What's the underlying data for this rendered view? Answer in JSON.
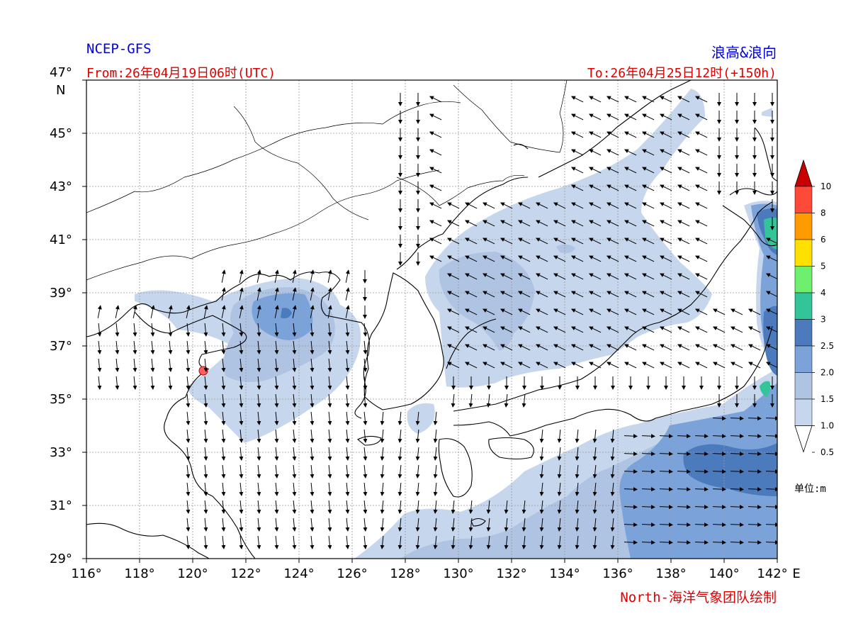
{
  "header": {
    "model": "NCEP-GFS",
    "product": "浪高&浪向",
    "from_time": "From:26年04月19日06时(UTC)",
    "to_time": "To:26年04月25日12时(+150h)"
  },
  "footer": {
    "credit": "North-海洋气象团队绘制"
  },
  "colorbar": {
    "unit_label": "单位:m",
    "levels": [
      "0.5",
      "1.0",
      "1.5",
      "2.0",
      "2.5",
      "3",
      "4",
      "5",
      "6",
      "8",
      "10"
    ],
    "colors": [
      "#ffffff",
      "#c6d6ec",
      "#afc3e2",
      "#7ba3d9",
      "#4c7bbd",
      "#33c49a",
      "#6ef06e",
      "#ffe000",
      "#ff9a00",
      "#ff4a3a",
      "#c80000"
    ]
  },
  "axes": {
    "lat_labels": [
      "47°",
      "45°",
      "43°",
      "41°",
      "39°",
      "37°",
      "35°",
      "33°",
      "31°",
      "29°"
    ],
    "lat_unit": "N",
    "lon_labels": [
      "116°",
      "118°",
      "120°",
      "122°",
      "124°",
      "126°",
      "128°",
      "130°",
      "132°",
      "134°",
      "136°",
      "138°",
      "140°",
      "142°"
    ],
    "lon_unit": "E",
    "lat_range": [
      29,
      47
    ],
    "lon_range": [
      116,
      142
    ],
    "grid": true
  },
  "marker": {
    "name": "location-marker",
    "color": "#ff6060",
    "lon": 120.4,
    "lat": 36.1
  }
}
